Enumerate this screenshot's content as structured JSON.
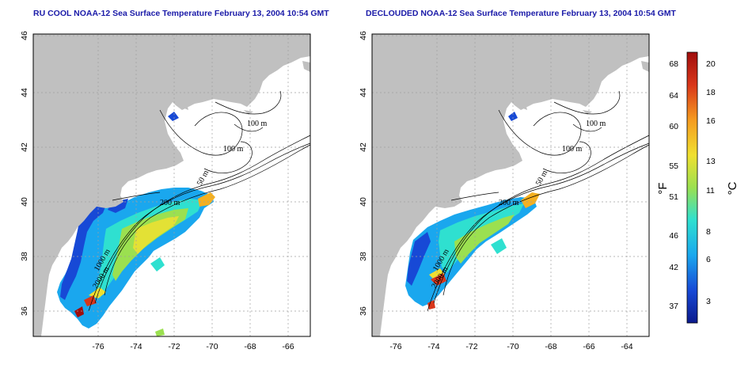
{
  "titles": {
    "left": "RU COOL NOAA-12 Sea Surface Temperature February 13, 2004 10:54 GMT",
    "right": "DECLOUDED NOAA-12 Sea Surface Temperature February 13, 2004 10:54 GMT"
  },
  "axes": {
    "lon_ticks": [
      "-76",
      "-74",
      "-72",
      "-70",
      "-68",
      "-66",
      "-64"
    ],
    "lat_ticks": [
      "46",
      "44",
      "42",
      "40",
      "38",
      "36"
    ]
  },
  "contour_labels": {
    "left": [
      "100 m",
      "100 m",
      "50 m",
      "200 m",
      "1000 m",
      "2000 m"
    ],
    "right": [
      "100 m",
      "100 m",
      "50 m",
      "200 m",
      "1000 m",
      "2000 m"
    ]
  },
  "colorbar": {
    "fahrenheit_label": "°F",
    "celsius_label": "°C",
    "fahrenheit_ticks": [
      "68",
      "64",
      "60",
      "55",
      "51",
      "46",
      "42",
      "37"
    ],
    "celsius_ticks": [
      "20",
      "18",
      "16",
      "13",
      "11",
      "8",
      "6",
      "3"
    ],
    "colors": [
      "#0b1a8c",
      "#1749d6",
      "#1aa7ee",
      "#2fe0d0",
      "#9be050",
      "#f0e030",
      "#f59b20",
      "#d9361a",
      "#a00d0d"
    ]
  },
  "map_colors": {
    "land": "#c0c0c0",
    "water": "#ffffff",
    "grid": "#a0a0a0"
  }
}
